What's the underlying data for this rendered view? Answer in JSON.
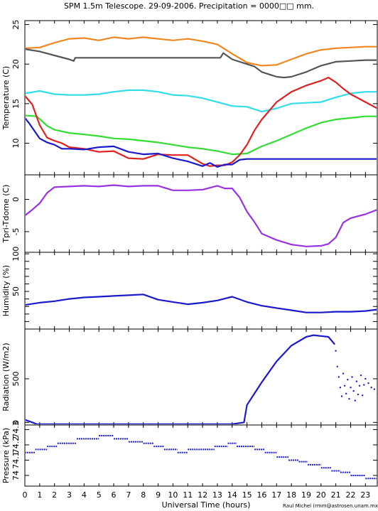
{
  "chart_data": {
    "type": "line",
    "title": "SPM 1.5m Telescope. 29-09-2006. Precipitation = 0000□□ mm.",
    "xlabel": "Universal Time (hours)",
    "credit": "Raul Michel (rmm@astrosen.unam.mx)",
    "x_ticks": [
      0,
      1,
      2,
      3,
      4,
      5,
      6,
      7,
      8,
      9,
      10,
      11,
      12,
      13,
      14,
      15,
      16,
      17,
      18,
      19,
      20,
      21,
      22,
      23
    ],
    "xlim": [
      0,
      23.8
    ],
    "panels": [
      {
        "name": "temperature",
        "ylabel": "Temperature (C)",
        "ylim": [
          6,
          25.5
        ],
        "y_ticks": [
          10,
          15,
          20,
          25
        ],
        "series": [
          {
            "color": "#ee8822",
            "style": "line",
            "x": [
              0,
              1,
              2,
              3,
              4,
              5,
              6,
              7,
              8,
              9,
              10,
              11,
              12,
              13,
              14,
              15,
              16,
              17,
              18,
              19,
              20,
              21,
              22,
              23,
              23.8
            ],
            "y": [
              22,
              22.1,
              22.7,
              23.2,
              23.3,
              23,
              23.4,
              23.2,
              23.4,
              23.2,
              23,
              23.2,
              22.9,
              22.5,
              21.3,
              20.2,
              19.8,
              19.9,
              20.6,
              21.3,
              21.8,
              22,
              22.1,
              22.2,
              22.2
            ]
          },
          {
            "color": "#555555",
            "style": "line",
            "x": [
              0,
              1,
              2,
              3,
              3.3,
              3.4,
              13.2,
              13.4,
              14,
              15,
              15.5,
              16,
              17,
              17.5,
              18,
              19,
              20,
              21,
              22,
              23,
              23.8
            ],
            "y": [
              21.9,
              21.6,
              21.1,
              20.6,
              20.4,
              20.8,
              20.8,
              21.4,
              20.6,
              20,
              19.7,
              19,
              18.4,
              18.3,
              18.4,
              19,
              19.8,
              20.3,
              20.4,
              20.5,
              20.5
            ]
          },
          {
            "color": "#33dde8",
            "style": "line",
            "x": [
              0,
              1,
              2,
              3,
              4,
              5,
              6,
              7,
              8,
              9,
              10,
              11,
              12,
              13,
              14,
              15,
              16,
              17,
              18,
              19,
              20,
              21,
              22,
              23,
              23.8
            ],
            "y": [
              16.3,
              16.6,
              16.2,
              16.1,
              16.1,
              16.2,
              16.5,
              16.7,
              16.7,
              16.5,
              16.1,
              16,
              15.7,
              15.2,
              14.7,
              14.6,
              14,
              14.4,
              15,
              15.1,
              15.2,
              15.8,
              16.3,
              16.5,
              16.5
            ]
          },
          {
            "color": "#33dd33",
            "style": "line",
            "x": [
              0,
              0.8,
              1.5,
              2,
              3,
              4,
              5,
              6,
              7,
              8,
              9,
              10,
              11,
              12,
              13,
              14,
              15,
              16,
              17,
              18,
              19,
              20,
              21,
              22,
              23,
              23.8
            ],
            "y": [
              13.5,
              13.4,
              12.2,
              11.7,
              11.3,
              11.1,
              10.9,
              10.6,
              10.5,
              10.3,
              10.1,
              9.8,
              9.5,
              9.3,
              9,
              8.6,
              8.7,
              9.6,
              10.3,
              11.1,
              11.9,
              12.6,
              13,
              13.2,
              13.4,
              13.4
            ]
          },
          {
            "color": "#dd2222",
            "style": "line",
            "x": [
              0,
              0.5,
              1,
              1.5,
              2,
              2.5,
              3,
              4,
              5,
              6,
              7,
              8,
              9,
              10,
              11,
              12,
              12.5,
              13,
              13.5,
              14,
              14.5,
              15,
              15.5,
              16,
              17,
              18,
              19,
              20,
              20.5,
              21,
              21.5,
              22,
              23,
              23.8
            ],
            "y": [
              16,
              14.9,
              12.3,
              10.7,
              10.3,
              10,
              9.5,
              9.3,
              8.9,
              9,
              8.1,
              8,
              8.6,
              8.5,
              8.5,
              7.4,
              7.1,
              7.2,
              7.2,
              7.6,
              8.5,
              9.8,
              11.6,
              13,
              15.2,
              16.5,
              17.3,
              17.9,
              18.3,
              17.7,
              16.9,
              16.2,
              15.2,
              14.4
            ]
          },
          {
            "color": "#1a1acc",
            "style": "line",
            "x": [
              0,
              0.3,
              1,
              1.5,
              2,
              2.5,
              3,
              4,
              5,
              6,
              7,
              8,
              9,
              10,
              11,
              12,
              12.5,
              13,
              13.5,
              14,
              14.5,
              15,
              23.8
            ],
            "y": [
              13.2,
              12.5,
              10.6,
              10.1,
              9.8,
              9.3,
              9.3,
              9.2,
              9.5,
              9.6,
              8.9,
              8.6,
              8.7,
              8.1,
              7.7,
              7.1,
              7.5,
              7,
              7.3,
              7.3,
              7.9,
              8,
              8
            ]
          }
        ]
      },
      {
        "name": "tpri-tdome",
        "ylabel": "Tpri-Tdome (C)",
        "ylim": [
          -8.2,
          3.8
        ],
        "y_ticks": [
          -5,
          0
        ],
        "series": [
          {
            "color": "#9933dd",
            "style": "line",
            "x": [
              0,
              0.5,
              1,
              1.5,
              2,
              3,
              4,
              5,
              6,
              7,
              8,
              9,
              10,
              11,
              12,
              13,
              13.5,
              14,
              14.5,
              15,
              15.5,
              16,
              17,
              18,
              19,
              20,
              20.5,
              21,
              21.5,
              22,
              23,
              23.8
            ],
            "y": [
              -2.5,
              -1.6,
              -0.6,
              1,
              1.9,
              2,
              2.1,
              2,
              2.2,
              2,
              2.1,
              2.1,
              1.4,
              1.4,
              1.5,
              2.1,
              1.7,
              1.7,
              0.3,
              -1.9,
              -3.5,
              -5.3,
              -6.3,
              -7,
              -7.3,
              -7.2,
              -6.9,
              -5.9,
              -3.6,
              -2.9,
              -2.3,
              -1.6
            ]
          }
        ]
      },
      {
        "name": "humidity",
        "ylabel": "Humidity (%)",
        "ylim": [
          0,
          102
        ],
        "y_ticks": [
          10,
          20,
          30,
          40,
          50,
          60,
          70,
          80,
          90,
          100
        ],
        "y_tick_labels": [
          "",
          "",
          "",
          "",
          "50",
          "",
          "",
          "",
          "",
          "100"
        ],
        "series": [
          {
            "color": "#1a1acc",
            "style": "line",
            "x": [
              0,
              1,
              2,
              3,
              4,
              5,
              6,
              7,
              8,
              9,
              10,
              11,
              12,
              13,
              14,
              15,
              16,
              17,
              18,
              19,
              20,
              21,
              22,
              23,
              23.8
            ],
            "y": [
              32,
              35,
              37,
              40,
              42,
              43,
              44,
              45,
              46,
              39,
              36,
              33,
              35,
              38,
              43,
              36,
              31,
              28,
              25,
              22,
              22,
              23,
              23,
              24,
              26
            ]
          }
        ]
      },
      {
        "name": "radiation",
        "ylabel": "Radiation (W/m2)",
        "ylim": [
          -30,
          1070
        ],
        "y_ticks": [
          0,
          500
        ],
        "series": [
          {
            "color": "#1a1acc",
            "style": "line",
            "x": [
              0,
              0.5,
              0.8,
              1,
              2,
              3,
              4,
              5,
              6,
              7,
              8,
              9,
              10,
              11,
              12,
              13,
              14,
              14.8,
              15,
              16,
              17,
              18,
              19,
              19.5,
              20,
              20.5,
              20.9
            ],
            "y": [
              30,
              0,
              -20,
              -20,
              -20,
              -20,
              -20,
              -20,
              -20,
              -20,
              -20,
              -20,
              -20,
              -20,
              -20,
              -20,
              -20,
              0,
              200,
              460,
              700,
              880,
              980,
              1000,
              990,
              980,
              900
            ]
          },
          {
            "color": "#1a1acc",
            "style": "dots",
            "x": [
              21,
              21.1,
              21.2,
              21.3,
              21.4,
              21.5,
              21.6,
              21.7,
              21.8,
              21.9,
              22,
              22.1,
              22.2,
              22.3,
              22.4,
              22.5,
              22.6,
              22.7,
              22.8,
              22.9,
              23,
              23.2,
              23.4,
              23.6,
              23.8
            ],
            "y": [
              820,
              640,
              520,
              400,
              300,
              560,
              420,
              330,
              490,
              270,
              400,
              520,
              360,
              250,
              470,
              320,
              420,
              540,
              310,
              430,
              500,
              450,
              400,
              380,
              330
            ]
          }
        ]
      },
      {
        "name": "pressure",
        "ylabel": "Pressure (kPa)",
        "ylim": [
          73.93,
          74.33
        ],
        "y_ticks": [
          74,
          74.1,
          74.2,
          74.3
        ],
        "series": [
          {
            "color": "#1a1acc",
            "style": "steps",
            "x": [
              0,
              0.7,
              1.5,
              2.2,
              3.5,
              5,
              6,
              7,
              8,
              8.7,
              9.4,
              10.3,
              11,
              12.8,
              13.7,
              14.3,
              15.5,
              16.2,
              17,
              17.8,
              18.5,
              19.1,
              20,
              20.7,
              21.3,
              22,
              23,
              23.8
            ],
            "y": [
              74.15,
              74.17,
              74.19,
              74.21,
              74.24,
              74.26,
              74.24,
              74.22,
              74.21,
              74.19,
              74.17,
              74.15,
              74.17,
              74.19,
              74.21,
              74.19,
              74.17,
              74.15,
              74.12,
              74.1,
              74.09,
              74.07,
              74.05,
              74.03,
              74.02,
              74,
              73.98,
              73.96
            ]
          }
        ]
      }
    ]
  }
}
